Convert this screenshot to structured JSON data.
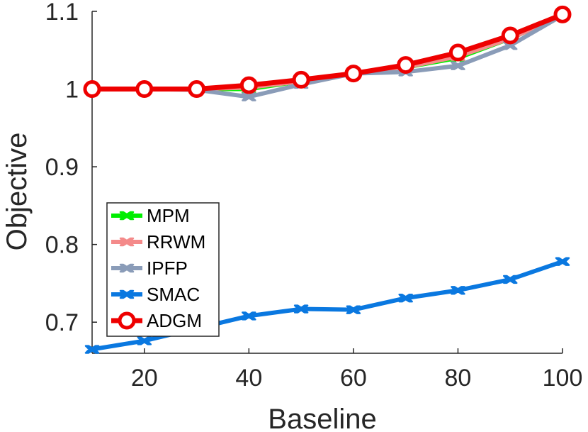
{
  "chart_data": {
    "type": "line",
    "title": "",
    "xlabel": "Baseline",
    "ylabel": "Objective",
    "xlim": [
      10,
      100
    ],
    "ylim": [
      0.66,
      1.1
    ],
    "xticks": [
      20,
      40,
      60,
      80,
      100
    ],
    "xtick_labels": [
      "20",
      "40",
      "60",
      "80",
      "100"
    ],
    "yticks": [
      0.7,
      0.8,
      0.9,
      1.0,
      1.1
    ],
    "ytick_labels": [
      "0.7",
      "0.8",
      "0.9",
      "1",
      "1.1"
    ],
    "grid": false,
    "legend_position": "bottom-left",
    "x": [
      10,
      20,
      30,
      40,
      50,
      60,
      70,
      80,
      90,
      100
    ],
    "series": [
      {
        "name": "MPM",
        "color": "#00ee00",
        "marker": "cross",
        "values": [
          1.0,
          1.0,
          1.0,
          1.0,
          1.01,
          1.02,
          1.028,
          1.04,
          1.065,
          1.095
        ]
      },
      {
        "name": "RRWM",
        "color": "#f48a8a",
        "marker": "cross",
        "values": [
          1.0,
          1.0,
          1.0,
          1.002,
          1.01,
          1.02,
          1.028,
          1.042,
          1.065,
          1.095
        ]
      },
      {
        "name": "IPFP",
        "color": "#8a9cb8",
        "marker": "cross",
        "values": [
          1.0,
          1.0,
          0.999,
          0.99,
          1.006,
          1.02,
          1.022,
          1.03,
          1.056,
          1.095
        ]
      },
      {
        "name": "SMAC",
        "color": "#0a78e0",
        "marker": "cross",
        "values": [
          0.665,
          0.676,
          0.692,
          0.708,
          0.717,
          0.716,
          0.731,
          0.741,
          0.755,
          0.778
        ]
      },
      {
        "name": "ADGM",
        "color": "#ee0000",
        "marker": "circle",
        "values": [
          1.0,
          1.0,
          1.0,
          1.005,
          1.012,
          1.02,
          1.031,
          1.047,
          1.069,
          1.096
        ]
      }
    ]
  }
}
